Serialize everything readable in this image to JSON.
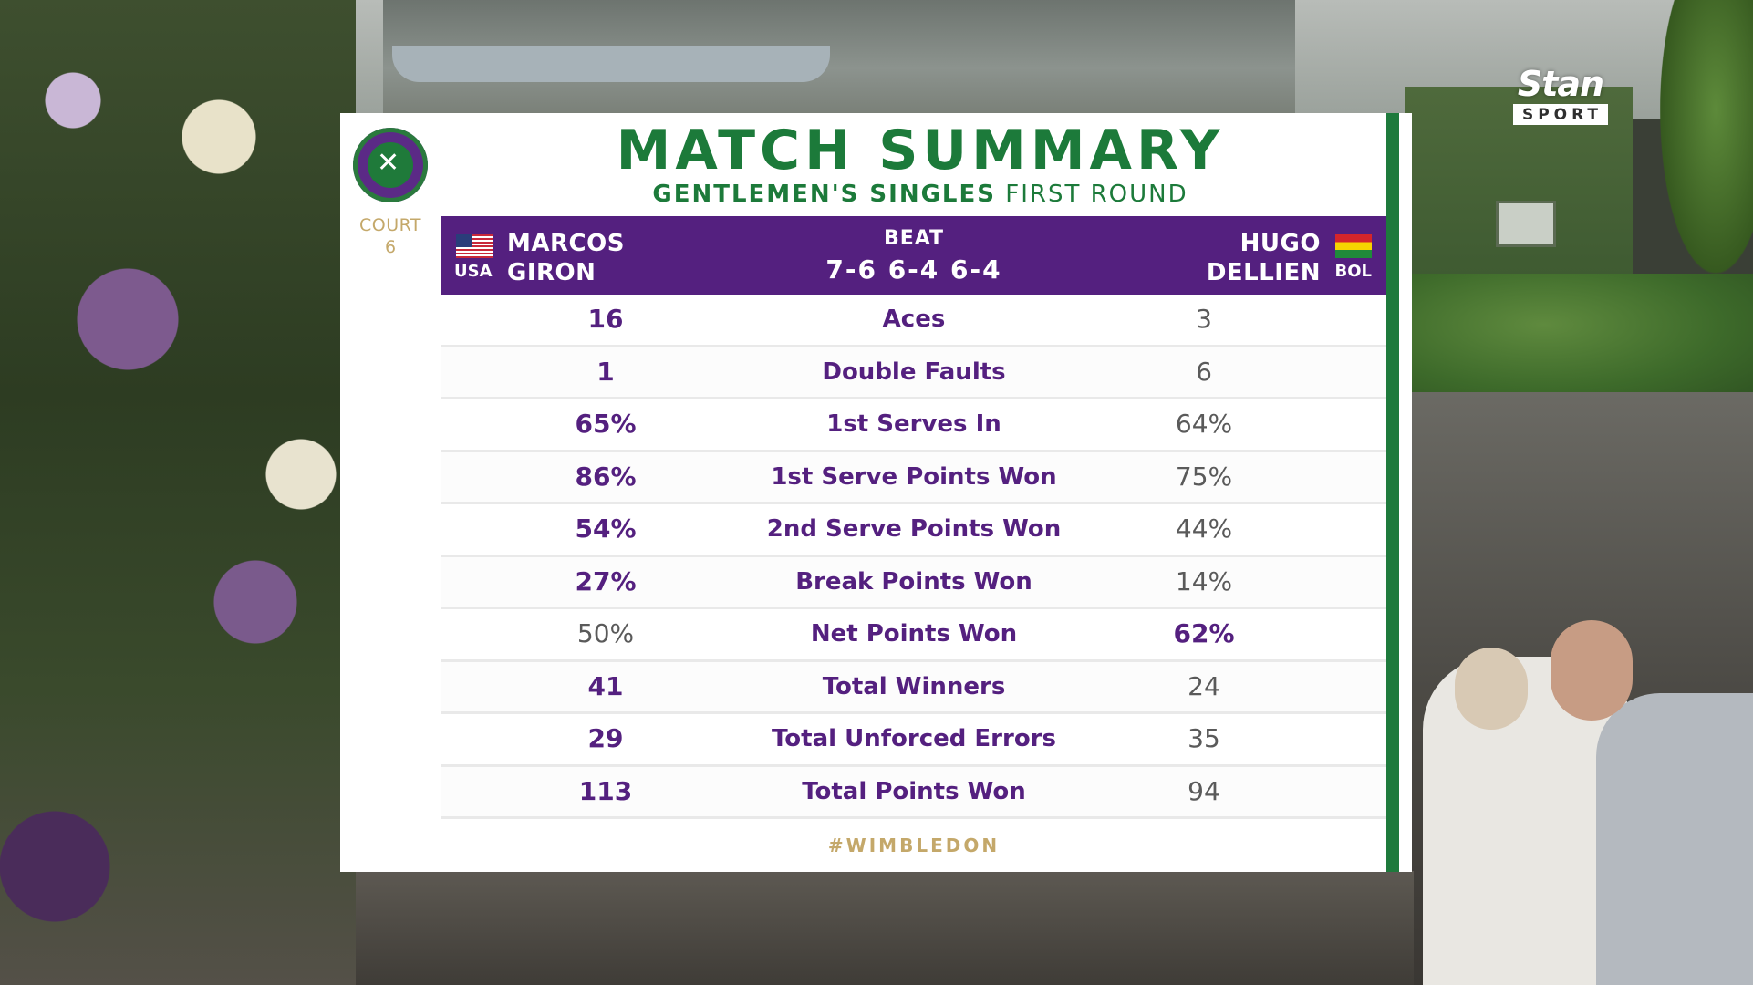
{
  "broadcaster": {
    "name": "Stan",
    "sub": "SPORT"
  },
  "court": {
    "label": "COURT",
    "number": "6"
  },
  "title": "MATCH SUMMARY",
  "subtitle": {
    "event": "GENTLEMEN'S SINGLES",
    "round": "FIRST ROUND"
  },
  "result": {
    "left_player": {
      "first": "MARCOS",
      "last": "GIRON",
      "country": "USA"
    },
    "verb": "BEAT",
    "score": "7-6 6-4 6-4",
    "right_player": {
      "first": "HUGO",
      "last": "DELLIEN",
      "country": "BOL"
    }
  },
  "stats": [
    {
      "label": "Aces",
      "left": "16",
      "right": "3",
      "leader": "left"
    },
    {
      "label": "Double Faults",
      "left": "1",
      "right": "6",
      "leader": "left"
    },
    {
      "label": "1st Serves In",
      "left": "65%",
      "right": "64%",
      "leader": "left"
    },
    {
      "label": "1st Serve Points Won",
      "left": "86%",
      "right": "75%",
      "leader": "left"
    },
    {
      "label": "2nd Serve Points Won",
      "left": "54%",
      "right": "44%",
      "leader": "left"
    },
    {
      "label": "Break Points Won",
      "left": "27%",
      "right": "14%",
      "leader": "left"
    },
    {
      "label": "Net Points Won",
      "left": "50%",
      "right": "62%",
      "leader": "right"
    },
    {
      "label": "Total Winners",
      "left": "41",
      "right": "24",
      "leader": "left"
    },
    {
      "label": "Total Unforced Errors",
      "left": "29",
      "right": "35",
      "leader": "left"
    },
    {
      "label": "Total Points Won",
      "left": "113",
      "right": "94",
      "leader": "left"
    }
  ],
  "hashtag": "#WIMBLEDON",
  "colors": {
    "purple": "#54207f",
    "green": "#1c7a3a",
    "gold": "#c4a86a"
  }
}
